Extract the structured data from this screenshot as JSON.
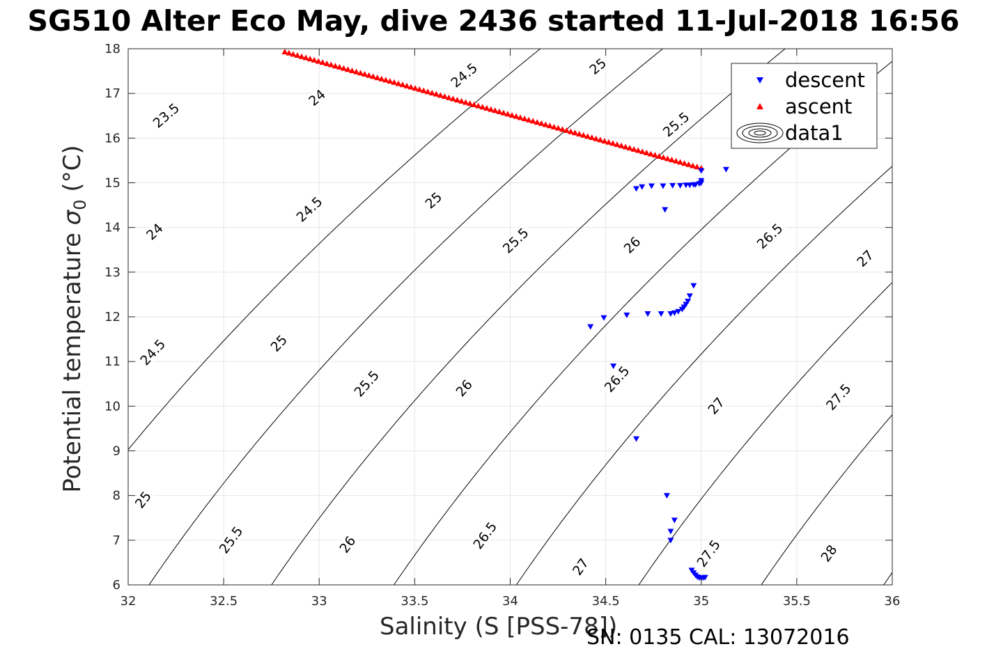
{
  "title": "SG510 Alter Eco May, dive 2436 started 11-Jul-2018 16:56",
  "footer": "SN: 0135  CAL: 13072016",
  "chart_data": {
    "type": "scatter",
    "xlabel": "Salinity (S [PSS-78])",
    "ylabel_main": "Potential temperature ",
    "ylabel_sigma": "σ",
    "ylabel_sub": "0",
    "ylabel_unit": " (°C)",
    "xlim": [
      32,
      36
    ],
    "ylim": [
      6,
      18
    ],
    "xticks": [
      "32",
      "32.5",
      "33",
      "33.5",
      "34",
      "34.5",
      "35",
      "35.5",
      "36"
    ],
    "yticks": [
      "6",
      "7",
      "8",
      "9",
      "10",
      "11",
      "12",
      "13",
      "14",
      "15",
      "16",
      "17",
      "18"
    ],
    "grid": true,
    "legend": {
      "position": "top-right",
      "entries": [
        {
          "label": "descent",
          "color": "#0000ff",
          "marker": "triangle-down"
        },
        {
          "label": "ascent",
          "color": "#ff0000",
          "marker": "triangle-up"
        },
        {
          "label": "data1",
          "color": "#000000",
          "marker": "contour"
        }
      ]
    },
    "contours": {
      "levels": [
        23.5,
        24,
        24.5,
        25,
        25.5,
        26,
        26.5,
        27,
        27.5,
        28
      ],
      "labels": [
        {
          "text": "23.5",
          "s": 32.2,
          "t": 16.5
        },
        {
          "text": "24",
          "s": 32.99,
          "t": 16.9
        },
        {
          "text": "24.5",
          "s": 33.76,
          "t": 17.4
        },
        {
          "text": "25",
          "s": 34.46,
          "t": 17.6
        },
        {
          "text": "25.5",
          "s": 34.87,
          "t": 16.3
        },
        {
          "text": "24",
          "s": 32.14,
          "t": 13.9
        },
        {
          "text": "24.5",
          "s": 32.95,
          "t": 14.4
        },
        {
          "text": "25",
          "s": 33.6,
          "t": 14.6
        },
        {
          "text": "25.5",
          "s": 34.03,
          "t": 13.7
        },
        {
          "text": "26",
          "s": 34.64,
          "t": 13.6
        },
        {
          "text": "26.5",
          "s": 35.36,
          "t": 13.8
        },
        {
          "text": "27",
          "s": 35.86,
          "t": 13.3
        },
        {
          "text": "24.5",
          "s": 32.13,
          "t": 11.2
        },
        {
          "text": "25",
          "s": 32.79,
          "t": 11.4
        },
        {
          "text": "25.5",
          "s": 33.25,
          "t": 10.5
        },
        {
          "text": "26",
          "s": 33.76,
          "t": 10.4
        },
        {
          "text": "26.5",
          "s": 34.56,
          "t": 10.6
        },
        {
          "text": "27",
          "s": 35.08,
          "t": 10.0
        },
        {
          "text": "27.5",
          "s": 35.72,
          "t": 10.2
        },
        {
          "text": "25",
          "s": 32.08,
          "t": 7.9
        },
        {
          "text": "25.5",
          "s": 32.54,
          "t": 7.0
        },
        {
          "text": "26",
          "s": 33.15,
          "t": 6.9
        },
        {
          "text": "26.5",
          "s": 33.87,
          "t": 7.1
        },
        {
          "text": "27",
          "s": 34.37,
          "t": 6.4
        },
        {
          "text": "27.5",
          "s": 35.04,
          "t": 6.7
        },
        {
          "text": "28",
          "s": 35.67,
          "t": 6.7
        }
      ]
    },
    "series": [
      {
        "name": "descent",
        "points": [
          [
            35.13,
            15.3
          ],
          [
            35.0,
            15.27
          ],
          [
            35.0,
            15.05
          ],
          [
            35.0,
            15.0
          ],
          [
            34.99,
            14.98
          ],
          [
            34.97,
            14.96
          ],
          [
            34.96,
            14.96
          ],
          [
            34.94,
            14.95
          ],
          [
            34.92,
            14.95
          ],
          [
            34.89,
            14.94
          ],
          [
            34.85,
            14.94
          ],
          [
            34.8,
            14.93
          ],
          [
            34.74,
            14.93
          ],
          [
            34.69,
            14.91
          ],
          [
            34.66,
            14.87
          ],
          [
            34.81,
            14.4
          ],
          [
            34.96,
            12.7
          ],
          [
            34.94,
            12.47
          ],
          [
            34.93,
            12.35
          ],
          [
            34.92,
            12.28
          ],
          [
            34.91,
            12.22
          ],
          [
            34.9,
            12.17
          ],
          [
            34.88,
            12.12
          ],
          [
            34.86,
            12.09
          ],
          [
            34.84,
            12.07
          ],
          [
            34.79,
            12.07
          ],
          [
            34.72,
            12.07
          ],
          [
            34.61,
            12.04
          ],
          [
            34.49,
            11.98
          ],
          [
            34.42,
            11.78
          ],
          [
            34.54,
            10.9
          ],
          [
            34.66,
            9.27
          ],
          [
            34.82,
            8.0
          ],
          [
            34.86,
            7.45
          ],
          [
            34.84,
            7.2
          ],
          [
            34.84,
            7.0
          ],
          [
            34.95,
            6.33
          ],
          [
            34.96,
            6.27
          ],
          [
            34.97,
            6.22
          ],
          [
            34.98,
            6.18
          ],
          [
            34.99,
            6.16
          ],
          [
            35.0,
            6.16
          ],
          [
            35.01,
            6.16
          ],
          [
            35.02,
            6.17
          ]
        ]
      },
      {
        "name": "ascent",
        "t_start": 17.93,
        "t_end": 15.33,
        "s_start": 32.82,
        "s_end": 35.0,
        "count": 100
      }
    ]
  }
}
